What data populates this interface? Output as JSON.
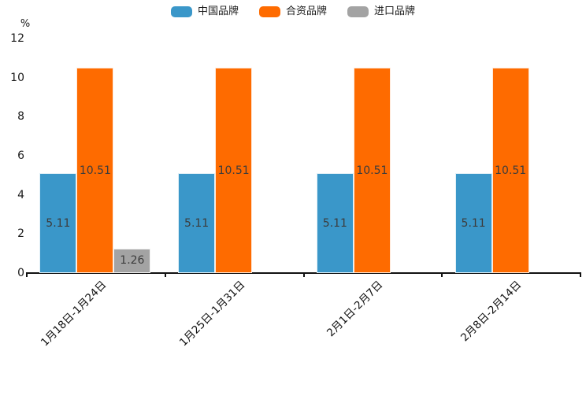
{
  "chart_data": {
    "type": "bar",
    "title": "",
    "categories": [
      "1月18日-1月24日",
      "1月25日-1月31日",
      "2月1日-2月7日",
      "2月8日-2月14日"
    ],
    "series": [
      {
        "name": "中国品牌",
        "color": "#3A97C9",
        "values": [
          5.11,
          5.11,
          5.11,
          5.11
        ]
      },
      {
        "name": "合资品牌",
        "color": "#FE6B00",
        "values": [
          10.51,
          10.51,
          10.51,
          10.51
        ]
      },
      {
        "name": "进口品牌",
        "color": "#A3A3A3",
        "values": [
          1.26,
          null,
          null,
          null
        ]
      }
    ],
    "xlabel": "",
    "ylabel": "%",
    "ylim": [
      0,
      12
    ],
    "yticks": [
      0,
      2,
      4,
      6,
      8,
      10,
      12
    ],
    "legend_position": "top",
    "grid": false,
    "value_labels_shown": true,
    "value_label_decimals": 2,
    "colors": {
      "axis": "#111111",
      "tick_label": "#1A1A1A",
      "value_label": "#3C3C3C",
      "background": "#FFFFFF"
    }
  }
}
